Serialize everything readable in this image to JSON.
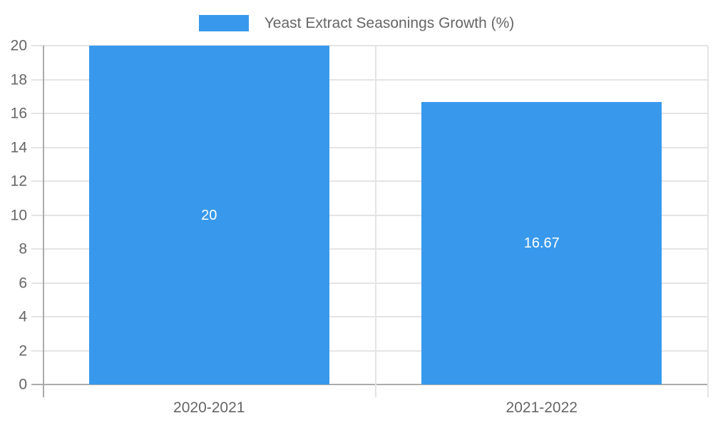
{
  "chart_data": {
    "type": "bar",
    "legend_label": "Yeast Extract Seasonings Growth (%)",
    "legend_position": "top",
    "categories": [
      "2020-2021",
      "2021-2022"
    ],
    "values": [
      20,
      16.67
    ],
    "value_labels": [
      "20",
      "16.67"
    ],
    "title": "",
    "xlabel": "",
    "ylabel": "",
    "ylim": [
      0,
      20
    ],
    "yticks": [
      0,
      2,
      4,
      6,
      8,
      10,
      12,
      14,
      16,
      18,
      20
    ],
    "grid": true,
    "colors": {
      "bar": "#3899ec",
      "grid": "#e4e4e4",
      "axis": "#ababab",
      "tick_text": "#666666",
      "value_text": "#ffffff",
      "background": "#ffffff"
    }
  }
}
